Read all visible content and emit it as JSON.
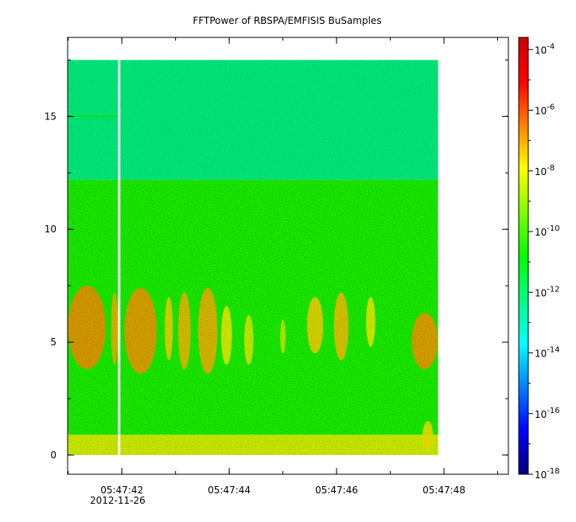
{
  "chart_data": {
    "type": "heatmap",
    "title": "FFTPower of RBSPA/EMFISIS  BuSamples",
    "x": {
      "ticks": [
        {
          "t": 42,
          "label": "05:47:42"
        },
        {
          "t": 44,
          "label": "05:47:44"
        },
        {
          "t": 46,
          "label": "05:47:46"
        },
        {
          "t": 48,
          "label": "05:47:48"
        }
      ],
      "minor_ticks": [
        41,
        42,
        43,
        44,
        45,
        46,
        47,
        48,
        49
      ],
      "date_label": "2012-11-26",
      "range": [
        40.99,
        49.2
      ],
      "data_range": [
        40.99,
        47.89
      ],
      "gap_at": 41.95
    },
    "y": {
      "ticks": [
        0,
        5,
        10,
        15
      ],
      "minor_ticks": [
        0,
        2.5,
        5,
        7.5,
        10,
        12.5,
        15,
        17.5
      ],
      "range": [
        -0.85,
        18.5
      ],
      "data_range": [
        0,
        17.5
      ]
    },
    "colorbar": {
      "scale": "log",
      "range_exp": [
        -18,
        -3.6
      ],
      "tick_exponents": [
        -18,
        -16,
        -14,
        -12,
        -10,
        -8,
        -6,
        -4
      ],
      "minor_exponents": [
        -17,
        -15,
        -13,
        -11,
        -9,
        -7,
        -5
      ],
      "tick_base": "10",
      "palette": [
        "#00007f",
        "#0000ff",
        "#0080ff",
        "#00ffff",
        "#00ff80",
        "#00ff00",
        "#80ff00",
        "#ffff00",
        "#ff8000",
        "#ff0000",
        "#cc0000"
      ]
    },
    "bands": [
      {
        "y": [
          12.2,
          17.5
        ],
        "level_exp": -12.3
      },
      {
        "y": [
          0.9,
          12.2
        ],
        "level_exp": -10.5
      },
      {
        "y": [
          0,
          0.9
        ],
        "level_exp": -8.3
      }
    ],
    "bursts": [
      {
        "t": [
          41.0,
          41.7
        ],
        "y": [
          3.8,
          7.5
        ],
        "level_exp": -6.8
      },
      {
        "t": [
          41.8,
          41.93
        ],
        "y": [
          4.0,
          7.2
        ],
        "level_exp": -7.2
      },
      {
        "t": [
          42.05,
          42.65
        ],
        "y": [
          3.6,
          7.4
        ],
        "level_exp": -6.9
      },
      {
        "t": [
          42.8,
          42.95
        ],
        "y": [
          4.2,
          7.0
        ],
        "level_exp": -7.6
      },
      {
        "t": [
          43.05,
          43.28
        ],
        "y": [
          3.8,
          7.2
        ],
        "level_exp": -7.3
      },
      {
        "t": [
          43.42,
          43.78
        ],
        "y": [
          3.6,
          7.4
        ],
        "level_exp": -7.2
      },
      {
        "t": [
          43.85,
          44.05
        ],
        "y": [
          4.0,
          6.6
        ],
        "level_exp": -8.0
      },
      {
        "t": [
          44.28,
          44.45
        ],
        "y": [
          4.0,
          6.2
        ],
        "level_exp": -8.2
      },
      {
        "t": [
          44.95,
          45.05
        ],
        "y": [
          4.5,
          6.0
        ],
        "level_exp": -8.5
      },
      {
        "t": [
          45.45,
          45.75
        ],
        "y": [
          4.5,
          7.0
        ],
        "level_exp": -7.6
      },
      {
        "t": [
          45.95,
          46.22
        ],
        "y": [
          4.2,
          7.2
        ],
        "level_exp": -7.4
      },
      {
        "t": [
          46.55,
          46.72
        ],
        "y": [
          4.8,
          7.0
        ],
        "level_exp": -8.0
      },
      {
        "t": [
          47.4,
          47.88
        ],
        "y": [
          3.8,
          6.3
        ],
        "level_exp": -6.9
      },
      {
        "t": [
          47.6,
          47.8
        ],
        "y": [
          0.2,
          1.5
        ],
        "level_exp": -7.8
      }
    ],
    "line_feature": {
      "t": [
        40.99,
        41.95
      ],
      "y": 15.0,
      "level_exp": -10.6
    }
  }
}
